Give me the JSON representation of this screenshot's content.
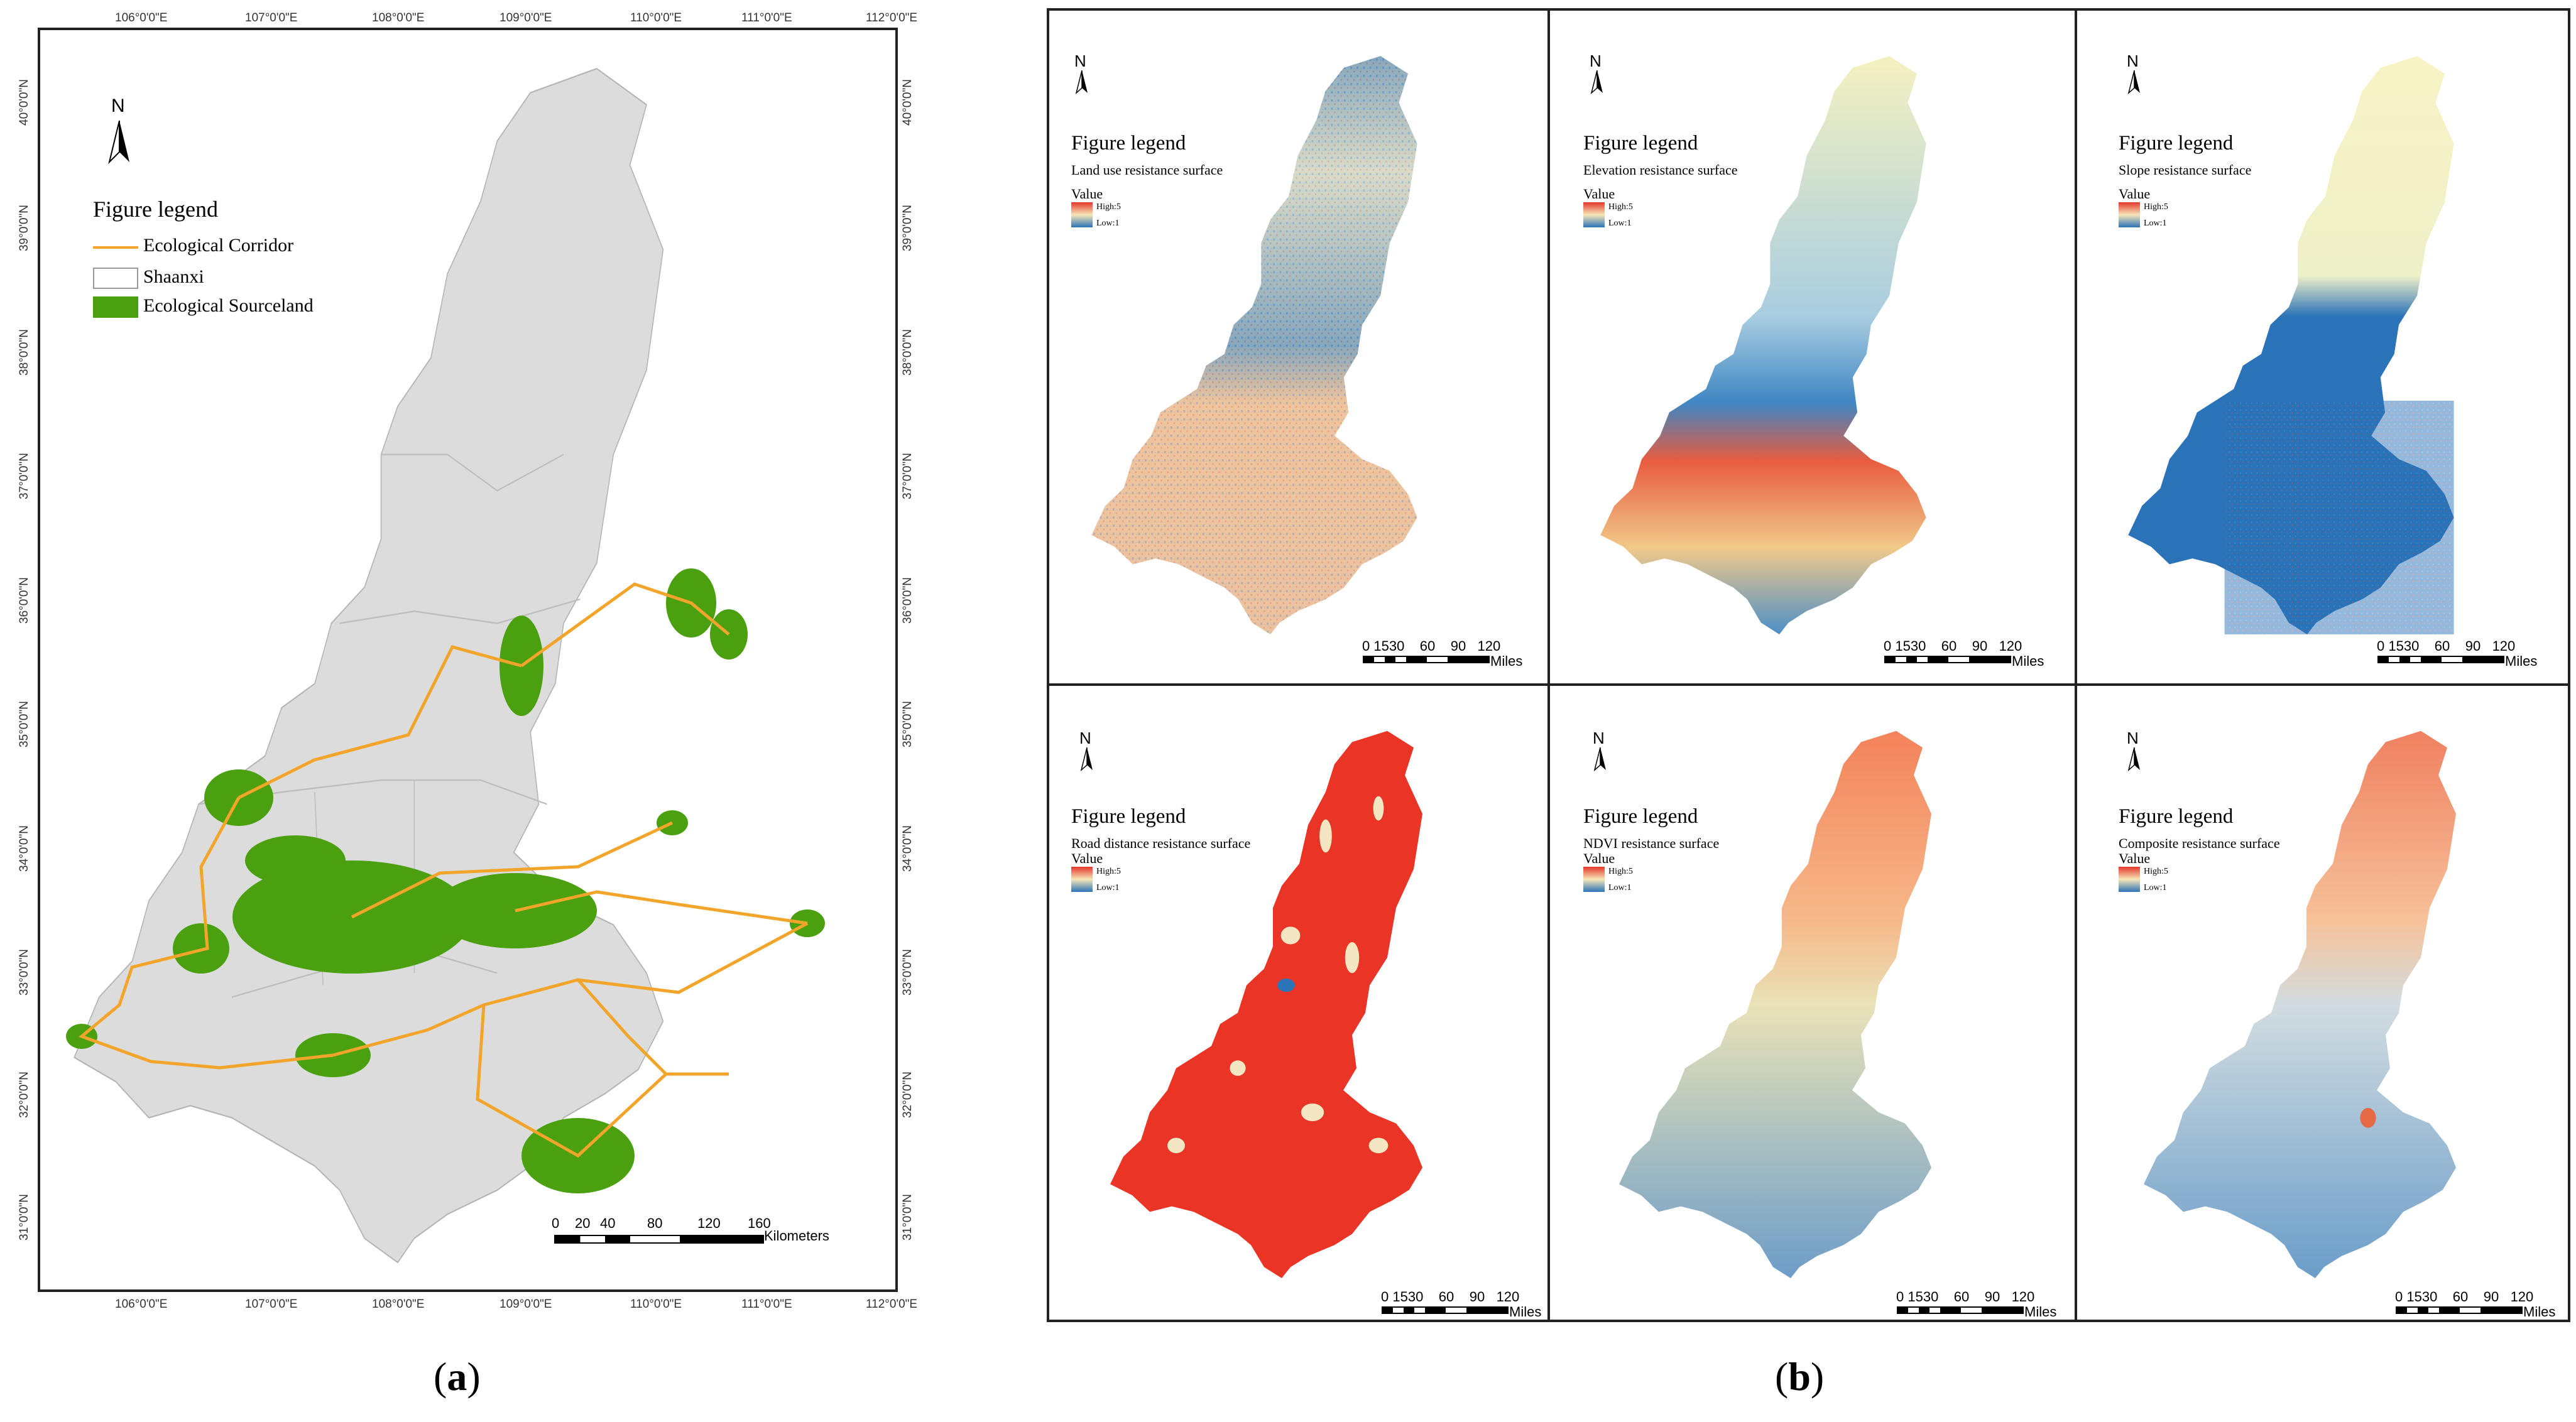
{
  "panel_a": {
    "caption": "a",
    "lon_labels": [
      "106°0'0\"E",
      "107°0'0\"E",
      "108°0'0\"E",
      "109°0'0\"E",
      "110°0'0\"E",
      "111°0'0\"E",
      "112°0'0\"E"
    ],
    "lat_labels": [
      "40°0'0\"N",
      "39°0'0\"N",
      "38°0'0\"N",
      "37°0'0\"N",
      "36°0'0\"N",
      "35°0'0\"N",
      "34°0'0\"N",
      "33°0'0\"N",
      "32°0'0\"N",
      "31°0'0\"N"
    ],
    "north": "N",
    "legend_title": "Figure legend",
    "legend_items": [
      {
        "label": "Ecological Corridor",
        "symbol": "line",
        "color": "#f2a52a"
      },
      {
        "label": "Shaanxi",
        "symbol": "box",
        "color": "#ffffff"
      },
      {
        "label": "Ecological Sourceland",
        "symbol": "fill",
        "color": "#4aa00f"
      }
    ],
    "scale_numbers": [
      "0",
      "20",
      "40",
      "80",
      "120",
      "160"
    ],
    "scale_unit": "Kilometers",
    "colors": {
      "province": "#dcdcdc",
      "corridor": "#f2a52a",
      "source": "#4aa00f",
      "boundary": "#bdbdbd"
    }
  },
  "panel_b": {
    "caption": "b",
    "north": "N",
    "legend_title": "Figure legend",
    "value_label": "Value",
    "high_label": "High:5",
    "low_label": "Low:1",
    "scale_numbers": [
      "0",
      "15",
      "30",
      "60",
      "90",
      "120"
    ],
    "scale_unit": "Miles",
    "surfaces": [
      {
        "subtitle": "Land use resistance surface"
      },
      {
        "subtitle": "Elevation resistance surface"
      },
      {
        "subtitle": "Slope resistance surface"
      },
      {
        "subtitle": "Road distance resistance surface"
      },
      {
        "subtitle": "NDVI resistance surface"
      },
      {
        "subtitle": "Composite resistance surface"
      }
    ]
  }
}
